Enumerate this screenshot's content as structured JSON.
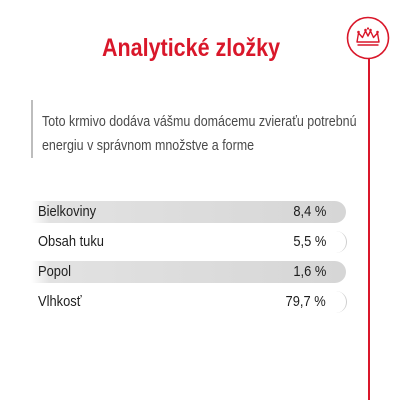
{
  "header": {
    "title": "Analytické zložky",
    "logo_icon": "royal-canin-crown-icon"
  },
  "description": {
    "text": "Toto krmivo dodáva vášmu domácemu zvieraťu potrebnú energiu v správnom množstve a forme"
  },
  "analysis": {
    "rows": [
      {
        "name": "Bielkoviny",
        "value": "8,4 %"
      },
      {
        "name": "Obsah tuku",
        "value": "5,5 %"
      },
      {
        "name": "Popol",
        "value": "1,6 %"
      },
      {
        "name": "Vlhkosť",
        "value": "79,7 %"
      }
    ]
  },
  "colors": {
    "brand_red": "#d9172a",
    "row_shade": "#d6d6d6",
    "text": "#1e1e1e"
  }
}
